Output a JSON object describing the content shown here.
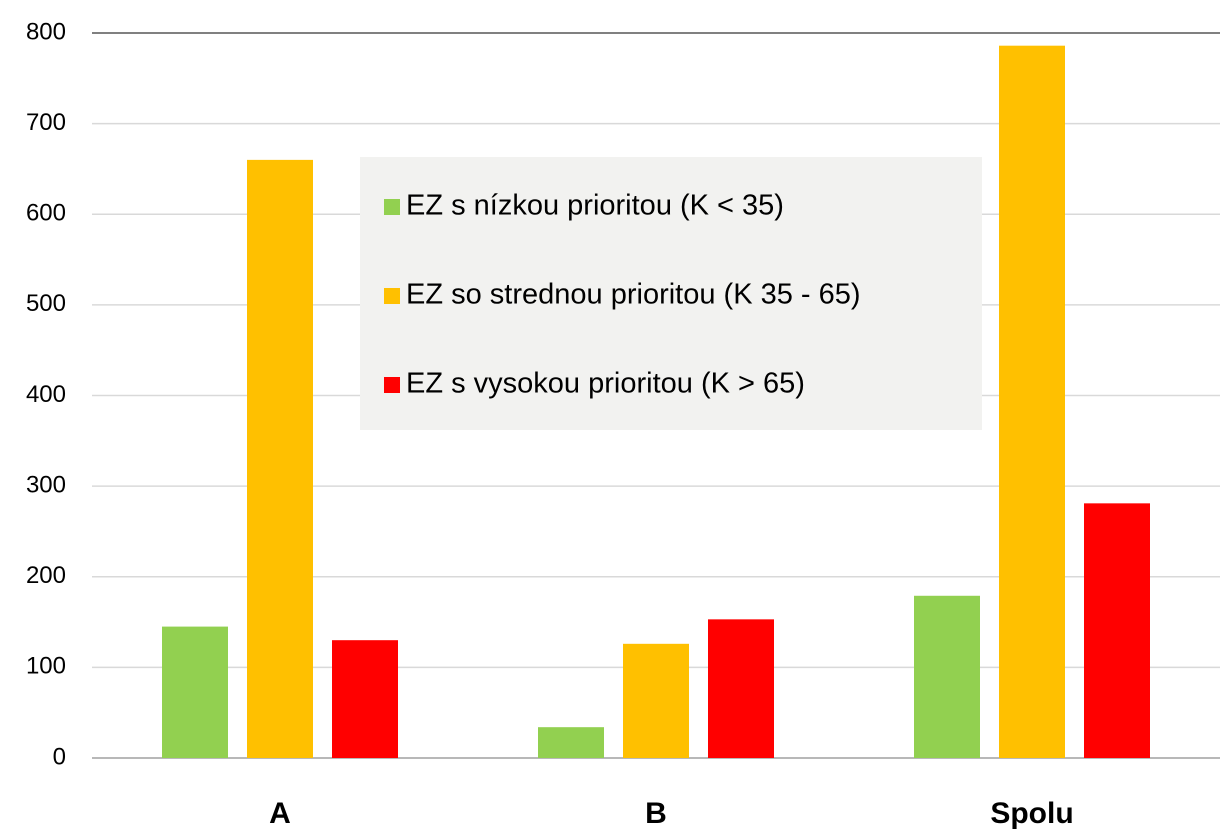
{
  "chart_data": {
    "type": "bar",
    "categories": [
      "A",
      "B",
      "Spolu"
    ],
    "series": [
      {
        "name": "EZ s nízkou prioritou (K < 35)",
        "color": "#92d050",
        "values": [
          145,
          34,
          179
        ]
      },
      {
        "name": "EZ so strednou prioritou (K 35 - 65)",
        "color": "#ffc000",
        "values": [
          660,
          126,
          786
        ]
      },
      {
        "name": "EZ s vysokou prioritou (K > 65)",
        "color": "#ff0000",
        "values": [
          130,
          153,
          281
        ]
      }
    ],
    "ylim": [
      0,
      800
    ],
    "yticks": [
      0,
      100,
      200,
      300,
      400,
      500,
      600,
      700,
      800
    ],
    "grid": true
  }
}
